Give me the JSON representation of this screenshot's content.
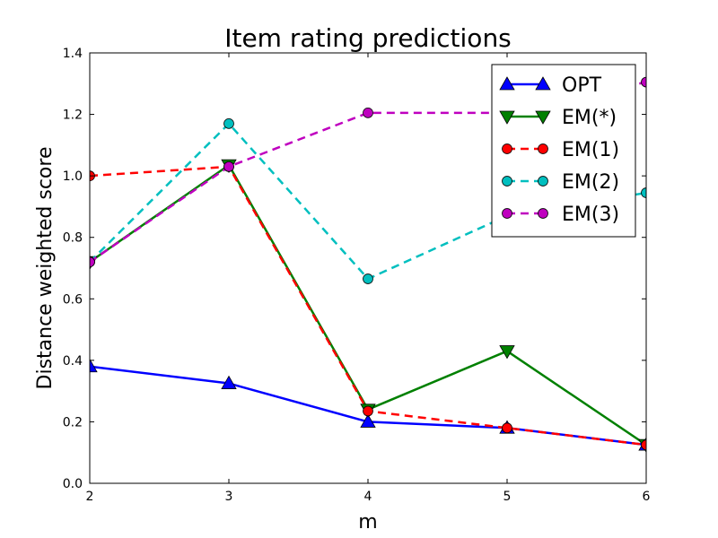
{
  "chart_data": {
    "type": "line",
    "title": "Item rating predictions",
    "xlabel": "m",
    "ylabel": "Distance weighted score",
    "x": [
      2,
      3,
      4,
      5,
      6
    ],
    "xticks": [
      "2",
      "3",
      "4",
      "5",
      "6"
    ],
    "yticks": [
      "0.0",
      "0.2",
      "0.4",
      "0.6",
      "0.8",
      "1.0",
      "1.2",
      "1.4"
    ],
    "xlim": [
      2,
      6
    ],
    "ylim": [
      0,
      1.4
    ],
    "grid": false,
    "legend_position": "top-right",
    "series": [
      {
        "name": "OPT",
        "values": [
          0.38,
          0.325,
          0.2,
          0.18,
          0.125
        ],
        "color": "#0000ff",
        "style": "solid",
        "marker": "triangle-up"
      },
      {
        "name": "EM(*)",
        "values": [
          0.72,
          1.035,
          0.24,
          0.43,
          0.125
        ],
        "color": "#008000",
        "style": "solid",
        "marker": "triangle-down"
      },
      {
        "name": "EM(1)",
        "values": [
          1.0,
          1.03,
          0.235,
          0.18,
          0.125
        ],
        "color": "#ff0000",
        "style": "dashed",
        "marker": "circle"
      },
      {
        "name": "EM(2)",
        "values": [
          0.72,
          1.17,
          0.665,
          0.87,
          0.945
        ],
        "color": "#00bfbf",
        "style": "dashed",
        "marker": "circle"
      },
      {
        "name": "EM(3)",
        "values": [
          0.72,
          1.03,
          1.205,
          1.205,
          1.305
        ],
        "color": "#bf00bf",
        "style": "dashed",
        "marker": "circle"
      }
    ]
  }
}
